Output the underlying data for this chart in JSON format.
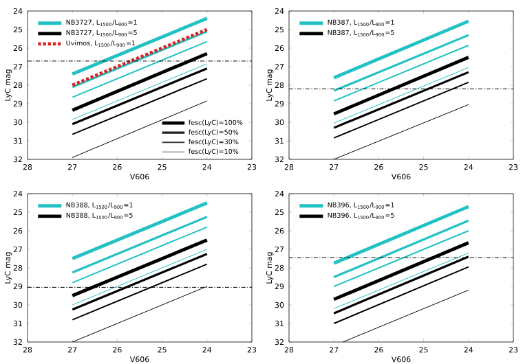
{
  "chart_data": [
    {
      "type": "line",
      "xlabel": "V606",
      "ylabel": "LyC mag",
      "xlim": [
        28,
        23
      ],
      "ylim": [
        32,
        24
      ],
      "xticks": [
        28,
        27,
        26,
        25,
        24,
        23
      ],
      "yticks": [
        32,
        31,
        30,
        29,
        28,
        27,
        26,
        25,
        24
      ],
      "grid": false,
      "legend": "top left",
      "marker": "none",
      "ref_lines": [
        {
          "axis": "y",
          "value": 26.7,
          "color": "#000000",
          "line_style": "dashdot"
        }
      ],
      "annotations": [
        "fesc(LyC)=100%",
        "fesc(LyC)=50%",
        "fesc(LyC)=30%",
        "fesc(LyC)=10%"
      ],
      "series": [
        {
          "name": "NB3727, L$_{1500}$/L$_{900}$=1",
          "color": "#22c1c3",
          "x": [
            27,
            24
          ],
          "values": [
            27.4,
            24.4
          ]
        },
        {
          "color": "#22c1c3",
          "x": [
            27,
            24
          ],
          "values": [
            28.1,
            25.1
          ]
        },
        {
          "color": "#22c1c3",
          "x": [
            27,
            24
          ],
          "values": [
            28.65,
            25.65
          ]
        },
        {
          "color": "#22c1c3",
          "x": [
            27,
            24
          ],
          "values": [
            29.85,
            26.85
          ]
        },
        {
          "name": "NB3727, L$_{1500}$/L$_{900}$=5",
          "color": "#000000",
          "x": [
            27,
            24
          ],
          "values": [
            29.35,
            26.3
          ]
        },
        {
          "color": "#000000",
          "x": [
            27,
            24
          ],
          "values": [
            30.1,
            27.1
          ]
        },
        {
          "color": "#000000",
          "x": [
            27,
            24
          ],
          "values": [
            30.65,
            27.65
          ]
        },
        {
          "color": "#000000",
          "x": [
            27,
            24
          ],
          "values": [
            31.9,
            28.85
          ]
        },
        {
          "name": "Uvimos, L$_{1500}$/L$_{900}$=1",
          "color": "#d62728",
          "line_style": "dashed",
          "x": [
            27,
            24
          ],
          "values": [
            28.0,
            25.0
          ]
        }
      ]
    },
    {
      "type": "line",
      "xlabel": "V606",
      "ylabel": "LyC mag",
      "xlim": [
        28,
        23
      ],
      "ylim": [
        32,
        24
      ],
      "xticks": [
        28,
        27,
        26,
        25,
        24,
        23
      ],
      "yticks": [
        32,
        31,
        30,
        29,
        28,
        27,
        26,
        25,
        24
      ],
      "grid": false,
      "legend": "top left",
      "marker": "none",
      "ref_lines": [
        {
          "axis": "y",
          "value": 28.2,
          "color": "#000000",
          "line_style": "dashdot"
        }
      ],
      "series": [
        {
          "name": "NB387, L$_{1500}$/L$_{900}$=1",
          "color": "#22c1c3",
          "x": [
            27,
            24
          ],
          "values": [
            27.6,
            24.55
          ]
        },
        {
          "color": "#22c1c3",
          "x": [
            27,
            24
          ],
          "values": [
            28.3,
            25.3
          ]
        },
        {
          "color": "#22c1c3",
          "x": [
            27,
            24
          ],
          "values": [
            28.85,
            25.85
          ]
        },
        {
          "color": "#22c1c3",
          "x": [
            27,
            24
          ],
          "values": [
            30.05,
            27.05
          ]
        },
        {
          "name": "NB387, L$_{1500}$/L$_{900}$=5",
          "color": "#000000",
          "x": [
            27,
            24
          ],
          "values": [
            29.55,
            26.5
          ]
        },
        {
          "color": "#000000",
          "x": [
            27,
            24
          ],
          "values": [
            30.3,
            27.3
          ]
        },
        {
          "color": "#000000",
          "x": [
            27,
            24
          ],
          "values": [
            30.85,
            27.85
          ]
        },
        {
          "color": "#000000",
          "x": [
            27,
            24
          ],
          "values": [
            32.0,
            29.05
          ]
        }
      ]
    },
    {
      "type": "line",
      "xlabel": "V606",
      "ylabel": "LyC mag",
      "xlim": [
        28,
        23
      ],
      "ylim": [
        32,
        24
      ],
      "xticks": [
        28,
        27,
        26,
        25,
        24,
        23
      ],
      "yticks": [
        32,
        31,
        30,
        29,
        28,
        27,
        26,
        25,
        24
      ],
      "grid": false,
      "legend": "top left",
      "marker": "none",
      "ref_lines": [
        {
          "axis": "y",
          "value": 29.05,
          "color": "#000000",
          "line_style": "dashdot"
        }
      ],
      "series": [
        {
          "name": "NB388, L$_{1500}$/L$_{900}$=1",
          "color": "#22c1c3",
          "x": [
            27,
            24
          ],
          "values": [
            27.5,
            24.5
          ]
        },
        {
          "color": "#22c1c3",
          "x": [
            27,
            24
          ],
          "values": [
            28.25,
            25.25
          ]
        },
        {
          "color": "#22c1c3",
          "x": [
            27,
            24
          ],
          "values": [
            28.8,
            25.8
          ]
        },
        {
          "color": "#22c1c3",
          "x": [
            27,
            24
          ],
          "values": [
            30.0,
            27.0
          ]
        },
        {
          "name": "NB388, L$_{1500}$/L$_{900}$=5",
          "color": "#000000",
          "x": [
            27,
            24
          ],
          "values": [
            29.5,
            26.5
          ]
        },
        {
          "color": "#000000",
          "x": [
            27,
            24
          ],
          "values": [
            30.25,
            27.25
          ]
        },
        {
          "color": "#000000",
          "x": [
            27,
            24
          ],
          "values": [
            30.8,
            27.8
          ]
        },
        {
          "color": "#000000",
          "x": [
            27,
            24
          ],
          "values": [
            32.0,
            29.0
          ]
        }
      ]
    },
    {
      "type": "line",
      "xlabel": "V606",
      "ylabel": "LyC mag",
      "xlim": [
        28,
        23
      ],
      "ylim": [
        32,
        24
      ],
      "xticks": [
        28,
        27,
        26,
        25,
        24,
        23
      ],
      "yticks": [
        32,
        31,
        30,
        29,
        28,
        27,
        26,
        25,
        24
      ],
      "grid": false,
      "legend": "top left",
      "marker": "none",
      "ref_lines": [
        {
          "axis": "y",
          "value": 27.45,
          "color": "#000000",
          "line_style": "dashdot"
        }
      ],
      "series": [
        {
          "name": "NB396, L$_{1500}$/L$_{900}$=1",
          "color": "#22c1c3",
          "x": [
            27,
            24
          ],
          "values": [
            27.75,
            24.7
          ]
        },
        {
          "color": "#22c1c3",
          "x": [
            27,
            24
          ],
          "values": [
            28.5,
            25.45
          ]
        },
        {
          "color": "#22c1c3",
          "x": [
            27,
            24
          ],
          "values": [
            29.0,
            26.0
          ]
        },
        {
          "color": "#22c1c3",
          "x": [
            27,
            24
          ],
          "values": [
            30.2,
            27.2
          ]
        },
        {
          "name": "NB396, L$_{1500}$/L$_{900}$=5",
          "color": "#000000",
          "x": [
            27,
            24
          ],
          "values": [
            29.7,
            26.65
          ]
        },
        {
          "color": "#000000",
          "x": [
            27,
            24
          ],
          "values": [
            30.45,
            27.4
          ]
        },
        {
          "color": "#000000",
          "x": [
            27,
            24
          ],
          "values": [
            31.0,
            27.95
          ]
        },
        {
          "color": "#000000",
          "x": [
            26.8,
            24
          ],
          "values": [
            32.0,
            29.2
          ]
        }
      ]
    }
  ]
}
